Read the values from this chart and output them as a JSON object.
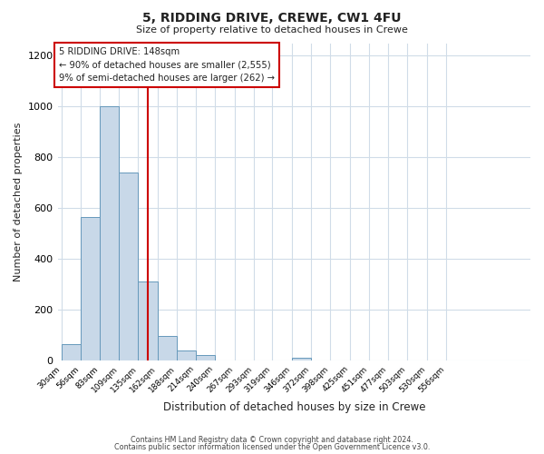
{
  "title": "5, RIDDING DRIVE, CREWE, CW1 4FU",
  "subtitle": "Size of property relative to detached houses in Crewe",
  "xlabel": "Distribution of detached houses by size in Crewe",
  "ylabel": "Number of detached properties",
  "bar_left_edges": [
    30,
    56,
    83,
    109,
    135,
    162,
    188,
    214,
    240,
    267,
    293,
    319,
    346,
    372,
    398,
    425,
    451,
    477,
    503,
    530,
    556
  ],
  "bar_values": [
    65,
    565,
    1000,
    740,
    310,
    95,
    40,
    20,
    0,
    0,
    0,
    0,
    10,
    0,
    0,
    0,
    0,
    0,
    0,
    0,
    0
  ],
  "bar_labels": [
    "30sqm",
    "56sqm",
    "83sqm",
    "109sqm",
    "135sqm",
    "162sqm",
    "188sqm",
    "214sqm",
    "240sqm",
    "267sqm",
    "293sqm",
    "319sqm",
    "346sqm",
    "372sqm",
    "398sqm",
    "425sqm",
    "451sqm",
    "477sqm",
    "503sqm",
    "530sqm",
    "556sqm"
  ],
  "bar_color": "#c8d8e8",
  "bar_edge_color": "#6699bb",
  "ylim": [
    0,
    1250
  ],
  "yticks": [
    0,
    200,
    400,
    600,
    800,
    1000,
    1200
  ],
  "property_line_x": 148,
  "property_line_label": "5 RIDDING DRIVE: 148sqm",
  "annotation_line1": "← 90% of detached houses are smaller (2,555)",
  "annotation_line2": "9% of semi-detached houses are larger (262) →",
  "vline_color": "#cc0000",
  "footer_line1": "Contains HM Land Registry data © Crown copyright and database right 2024.",
  "footer_line2": "Contains public sector information licensed under the Open Government Licence v3.0.",
  "bg_color": "#ffffff",
  "grid_color": "#d0dce8",
  "text_color": "#222222"
}
